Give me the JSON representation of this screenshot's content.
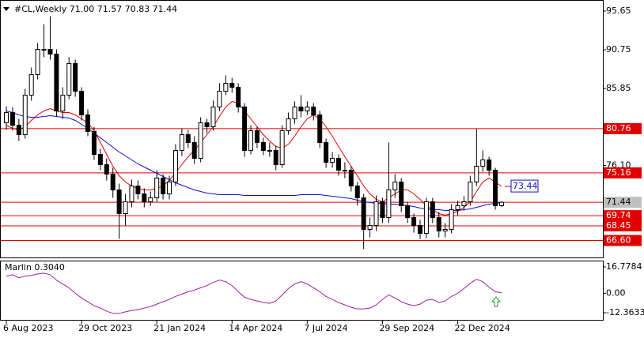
{
  "chart_data": [
    {
      "type": "candlestick",
      "title": "#CL,Weekly  71.00 71.57 70.83 71.44",
      "categories": [
        "6 Aug 2023",
        null,
        null,
        null,
        null,
        null,
        null,
        null,
        null,
        null,
        null,
        null,
        "29 Oct 2023",
        null,
        null,
        null,
        null,
        null,
        null,
        null,
        null,
        null,
        null,
        null,
        "21 Jan 2024",
        null,
        null,
        null,
        null,
        null,
        null,
        null,
        null,
        null,
        null,
        null,
        "14 Apr 2024",
        null,
        null,
        null,
        null,
        null,
        null,
        null,
        null,
        null,
        null,
        null,
        "7 Jul 2024",
        null,
        null,
        null,
        null,
        null,
        null,
        null,
        null,
        null,
        null,
        null,
        "29 Sep 2024",
        null,
        null,
        null,
        null,
        null,
        null,
        null,
        null,
        null,
        null,
        null,
        "22 Dec 2024",
        null,
        null,
        null,
        null,
        null,
        null,
        null
      ],
      "open": [
        81.5,
        82.8,
        81.2,
        80.0,
        85.0,
        87.6,
        90.8,
        90.8,
        90.2,
        83.0,
        85.0,
        89.0,
        85.5,
        82.5,
        80.4,
        77.5,
        76.2,
        75.0,
        73.0,
        70.0,
        71.5,
        73.5,
        72.5,
        71.5,
        72.0,
        74.5,
        72.5,
        74.0,
        78.0,
        80.0,
        79.0,
        77.0,
        81.5,
        81.0,
        83.5,
        85.5,
        86.5,
        86.0,
        83.5,
        78.0,
        80.5,
        79.0,
        78.0,
        78.0,
        76.2,
        80.5,
        82.0,
        83.5,
        83.0,
        83.5,
        82.5,
        79.0,
        76.5,
        77.0,
        75.5,
        75.5,
        73.5,
        72.0,
        68.0,
        68.5,
        71.5,
        69.5,
        73.0,
        74.0,
        71.0,
        69.5,
        68.5,
        67.5,
        71.5,
        69.5,
        67.8,
        68.0,
        70.5,
        71.0,
        71.5,
        74.0,
        76.0,
        76.8,
        75.5,
        71.0
      ],
      "high": [
        83.6,
        83.5,
        82.0,
        85.8,
        88.5,
        91.6,
        94.0,
        95.0,
        90.8,
        86.0,
        89.8,
        89.5,
        86.0,
        83.2,
        81.0,
        78.2,
        77.0,
        75.8,
        73.8,
        72.5,
        74.3,
        74.2,
        73.2,
        72.8,
        75.5,
        75.0,
        74.8,
        78.8,
        80.8,
        80.6,
        79.8,
        82.2,
        82.0,
        84.3,
        86.5,
        87.5,
        87.2,
        86.5,
        84.0,
        81.2,
        81.0,
        79.6,
        79.0,
        78.6,
        81.2,
        82.8,
        84.2,
        85.0,
        84.2,
        84.0,
        83.0,
        79.5,
        77.8,
        77.5,
        76.5,
        76.0,
        74.0,
        72.5,
        69.5,
        72.3,
        72.0,
        79.0,
        75.0,
        74.5,
        71.5,
        70.0,
        69.2,
        72.0,
        72.0,
        70.2,
        68.8,
        71.2,
        71.6,
        72.2,
        74.8,
        80.7,
        78.0,
        77.2,
        75.8,
        71.57
      ],
      "low": [
        80.6,
        80.5,
        79.2,
        79.5,
        84.3,
        87.0,
        89.8,
        89.5,
        82.3,
        82.0,
        84.5,
        84.8,
        81.8,
        79.8,
        76.8,
        75.5,
        74.2,
        72.0,
        66.8,
        68.5,
        70.8,
        71.8,
        70.8,
        71.0,
        71.5,
        71.8,
        71.8,
        73.5,
        77.3,
        78.3,
        76.3,
        76.5,
        80.2,
        80.5,
        83.0,
        85.0,
        85.3,
        82.8,
        77.2,
        77.5,
        78.3,
        77.4,
        77.2,
        75.5,
        75.8,
        80.0,
        81.4,
        82.2,
        82.5,
        81.8,
        78.3,
        75.8,
        75.8,
        74.8,
        74.5,
        72.8,
        71.0,
        65.5,
        67.0,
        67.8,
        68.8,
        68.8,
        72.0,
        70.2,
        68.8,
        67.6,
        66.8,
        66.9,
        68.8,
        67.0,
        67.0,
        67.5,
        69.8,
        70.4,
        71.0,
        73.5,
        75.3,
        74.8,
        70.5,
        70.83
      ],
      "close": [
        82.8,
        81.2,
        80.0,
        85.0,
        87.6,
        90.8,
        90.8,
        90.2,
        83.0,
        85.0,
        89.0,
        85.5,
        82.5,
        80.4,
        77.5,
        76.2,
        75.0,
        73.0,
        70.0,
        71.5,
        73.5,
        72.5,
        71.5,
        72.0,
        74.5,
        72.5,
        74.0,
        78.0,
        80.0,
        79.0,
        77.0,
        81.5,
        81.0,
        83.5,
        85.5,
        86.5,
        86.0,
        83.5,
        78.0,
        80.5,
        79.0,
        78.0,
        78.0,
        76.2,
        80.5,
        82.0,
        83.5,
        83.0,
        83.5,
        82.5,
        79.0,
        76.5,
        77.0,
        75.5,
        75.5,
        73.5,
        72.0,
        68.0,
        68.5,
        71.5,
        69.5,
        73.0,
        74.0,
        71.0,
        69.5,
        68.5,
        67.5,
        71.5,
        69.5,
        67.8,
        68.0,
        70.5,
        71.0,
        71.5,
        74.0,
        76.0,
        76.8,
        75.5,
        71.0,
        71.44
      ],
      "bull_color": "#ffffff",
      "bear_color": "#000000",
      "series": [
        {
          "color": "#e00000",
          "values": [
            81.2,
            80.8,
            80.6,
            81.0,
            81.8,
            82.5,
            83.0,
            83.3,
            83.0,
            82.8,
            82.8,
            82.5,
            82.0,
            81.5,
            80.5,
            79.0,
            77.5,
            76.0,
            74.8,
            74.0,
            73.5,
            73.2,
            73.0,
            73.0,
            73.2,
            73.5,
            74.2,
            75.2,
            76.2,
            77.2,
            78.0,
            79.0,
            80.0,
            81.0,
            82.3,
            83.5,
            84.2,
            84.0,
            83.0,
            82.0,
            81.0,
            80.0,
            79.2,
            78.5,
            78.3,
            78.8,
            79.8,
            81.0,
            82.0,
            82.5,
            82.0,
            81.0,
            79.8,
            78.5,
            77.2,
            76.0,
            74.8,
            73.5,
            72.5,
            71.8,
            71.5,
            72.0,
            72.5,
            73.0,
            73.0,
            72.5,
            71.8,
            71.0,
            70.5,
            70.0,
            69.8,
            70.0,
            70.3,
            70.8,
            71.5,
            72.8,
            74.0,
            74.5,
            74.0,
            73.44
          ]
        },
        {
          "color": "#1010c8",
          "values": [
            83.0,
            82.8,
            82.5,
            82.3,
            82.2,
            82.2,
            82.3,
            82.4,
            82.3,
            82.2,
            82.1,
            81.8,
            81.3,
            80.8,
            80.2,
            79.6,
            79.0,
            78.4,
            77.8,
            77.3,
            76.8,
            76.3,
            75.9,
            75.5,
            75.1,
            74.7,
            74.3,
            73.9,
            73.6,
            73.3,
            73.0,
            72.8,
            72.6,
            72.5,
            72.4,
            72.4,
            72.4,
            72.4,
            72.3,
            72.3,
            72.3,
            72.3,
            72.3,
            72.3,
            72.3,
            72.3,
            72.3,
            72.4,
            72.4,
            72.4,
            72.4,
            72.3,
            72.2,
            72.1,
            72.0,
            71.9,
            71.7,
            71.5,
            71.4,
            71.3,
            71.3,
            71.2,
            71.2,
            71.1,
            71.0,
            70.9,
            70.7,
            70.6,
            70.5,
            70.5,
            70.4,
            70.4,
            70.4,
            70.5,
            70.6,
            70.8,
            71.0,
            71.2,
            71.3,
            71.4
          ]
        }
      ],
      "ylim": [
        64.55,
        96.75
      ],
      "yticks": [
        95.65,
        90.75,
        85.85,
        {
          "value": 76.1,
          "label": "76.10"
        }
      ],
      "level_color": "#e00000",
      "levels": [
        {
          "value": 80.76,
          "label": "80.76"
        },
        {
          "value": 75.16,
          "label": "75.16"
        },
        {
          "value": 69.74,
          "label": "69.74"
        },
        {
          "value": 68.45,
          "label": "68.45"
        },
        {
          "value": 66.6,
          "label": "66.60"
        }
      ],
      "current": {
        "value": 71.44,
        "label": "71.44"
      }
    },
    {
      "type": "line",
      "title": "Marlin 0.3040",
      "series": [
        {
          "color": "#a020a0",
          "values": [
            10.9,
            11.8,
            9.9,
            10.9,
            11.4,
            12.3,
            12.8,
            11.8,
            8.4,
            5.9,
            3.5,
            0.0,
            -3.0,
            -5.4,
            -7.9,
            -9.4,
            -11.4,
            -12.8,
            -12.8,
            -11.8,
            -10.9,
            -10.4,
            -9.4,
            -8.4,
            -6.9,
            -5.4,
            -3.9,
            -2.0,
            -0.5,
            1.0,
            2.0,
            3.5,
            4.9,
            6.9,
            8.4,
            7.4,
            4.9,
            1.0,
            -2.5,
            -3.9,
            -4.9,
            -5.9,
            -6.4,
            -4.9,
            -1.0,
            3.0,
            5.9,
            7.4,
            5.9,
            3.5,
            1.0,
            -2.0,
            -3.9,
            -5.9,
            -7.4,
            -8.9,
            -9.9,
            -9.9,
            -9.4,
            -7.4,
            -3.9,
            -1.0,
            -3.0,
            -5.4,
            -6.9,
            -7.9,
            -6.9,
            -4.4,
            -3.9,
            -5.9,
            -4.9,
            -2.0,
            0.0,
            3.0,
            6.4,
            8.9,
            7.4,
            3.9,
            1.0,
            0.304
          ]
        }
      ],
      "ylim": [
        -16.9,
        20.3
      ],
      "yticks": [
        16.7784,
        {
          "value": 0,
          "label": "0.00"
        },
        -12.3633
      ]
    }
  ]
}
